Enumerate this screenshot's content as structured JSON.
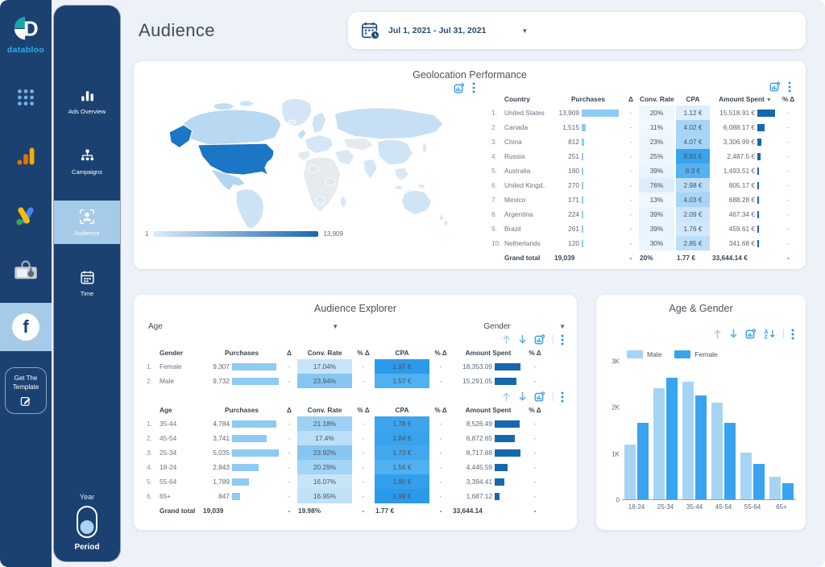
{
  "brand": {
    "name": "databloo"
  },
  "rail": {
    "icons": [
      {
        "name": "apps-grid"
      },
      {
        "name": "google-analytics"
      },
      {
        "name": "google-ads"
      },
      {
        "name": "toolbox"
      },
      {
        "name": "facebook",
        "active": true
      }
    ],
    "template_button": "Get The Template"
  },
  "nav": {
    "items": [
      {
        "label": "Ads Overview",
        "active": false
      },
      {
        "label": "Campaigns",
        "active": false
      },
      {
        "label": "Audience",
        "active": true
      },
      {
        "label": "Time",
        "active": false
      }
    ],
    "toggle": {
      "top_label": "Year",
      "bottom_label": "Period",
      "selected": "Period"
    }
  },
  "header": {
    "title": "Audience",
    "date_range": "Jul 1, 2021 - Jul 31, 2021"
  },
  "geo": {
    "title": "Geolocation Performance",
    "legend_min": "1",
    "legend_max": "13,909",
    "table": {
      "columns": [
        {
          "key": "country",
          "label": "Country"
        },
        {
          "key": "purchases",
          "label": "Purchases"
        },
        {
          "key": "delta",
          "label": "Δ"
        },
        {
          "key": "conv",
          "label": "Conv. Rate"
        },
        {
          "key": "cpa",
          "label": "CPA"
        },
        {
          "key": "spent",
          "label": "Amount Spent",
          "sorted": true
        },
        {
          "key": "pdelta",
          "label": "% Δ"
        }
      ],
      "rows": [
        {
          "n": "1.",
          "country": "United States",
          "purchases": "13,909",
          "delta": "-",
          "conv": "20%",
          "cpa": "1.12 €",
          "spent": "15,518.91 €",
          "pdelta": "-"
        },
        {
          "n": "2.",
          "country": "Canada",
          "purchases": "1,515",
          "delta": "-",
          "conv": "11%",
          "cpa": "4.02 €",
          "spent": "6,088.17 €",
          "pdelta": "-"
        },
        {
          "n": "3.",
          "country": "China",
          "purchases": "812",
          "delta": "-",
          "conv": "23%",
          "cpa": "4.07 €",
          "spent": "3,306.99 €",
          "pdelta": "-"
        },
        {
          "n": "4.",
          "country": "Russia",
          "purchases": "251",
          "delta": "-",
          "conv": "25%",
          "cpa": "9.91 €",
          "spent": "2,487.5 €",
          "pdelta": "-"
        },
        {
          "n": "5.",
          "country": "Australia",
          "purchases": "180",
          "delta": "-",
          "conv": "39%",
          "cpa": "8.3 €",
          "spent": "1,493.51 €",
          "pdelta": "-"
        },
        {
          "n": "6.",
          "country": "United Kingd..",
          "purchases": "270",
          "delta": "-",
          "conv": "76%",
          "cpa": "2.98 €",
          "spent": "805.17 €",
          "pdelta": "-"
        },
        {
          "n": "7.",
          "country": "Mexico",
          "purchases": "171",
          "delta": "-",
          "conv": "13%",
          "cpa": "4.03 €",
          "spent": "688.28 €",
          "pdelta": "-"
        },
        {
          "n": "8.",
          "country": "Argentina",
          "purchases": "224",
          "delta": "-",
          "conv": "39%",
          "cpa": "2.09 €",
          "spent": "467.34 €",
          "pdelta": "-"
        },
        {
          "n": "9.",
          "country": "Brazil",
          "purchases": "261",
          "delta": "-",
          "conv": "39%",
          "cpa": "1.76 €",
          "spent": "459.61 €",
          "pdelta": "-"
        },
        {
          "n": "10.",
          "country": "Netherlands",
          "purchases": "120",
          "delta": "-",
          "conv": "30%",
          "cpa": "2.85 €",
          "spent": "341.68 €",
          "pdelta": "-"
        }
      ],
      "grand_total": {
        "n": "",
        "country": "Grand total",
        "purchases": "19,039",
        "delta": "-",
        "conv": "20%",
        "cpa": "1.77 €",
        "spent": "33,644.14 €",
        "pdelta": "-"
      }
    }
  },
  "explorer": {
    "title": "Audience Explorer",
    "filters": [
      {
        "label": "Age"
      },
      {
        "label": "Gender"
      }
    ],
    "gender_table": {
      "columns": [
        {
          "key": "label",
          "label": "Gender"
        },
        {
          "key": "purchases",
          "label": "Purchases"
        },
        {
          "key": "delta",
          "label": "Δ"
        },
        {
          "key": "conv",
          "label": "Conv. Rate"
        },
        {
          "key": "pd1",
          "label": "% Δ"
        },
        {
          "key": "cpa",
          "label": "CPA"
        },
        {
          "key": "pd2",
          "label": "% Δ"
        },
        {
          "key": "spent",
          "label": "Amount Spent"
        },
        {
          "key": "pd3",
          "label": "% Δ"
        }
      ],
      "rows": [
        {
          "n": "1.",
          "label": "Female",
          "purchases": "9,307",
          "delta": "-",
          "conv": "17.04%",
          "pd1": "-",
          "cpa": "1.97 €",
          "pd2": "-",
          "spent": "18,353.09",
          "pd3": "-"
        },
        {
          "n": "2.",
          "label": "Male",
          "purchases": "9,732",
          "delta": "-",
          "conv": "23.94%",
          "pd1": "-",
          "cpa": "1.57 €",
          "pd2": "-",
          "spent": "15,291.05",
          "pd3": "-"
        }
      ]
    },
    "age_table": {
      "columns": [
        {
          "key": "label",
          "label": "Age"
        },
        {
          "key": "purchases",
          "label": "Purchases"
        },
        {
          "key": "delta",
          "label": "Δ"
        },
        {
          "key": "conv",
          "label": "Conv. Rate"
        },
        {
          "key": "pd1",
          "label": "% Δ"
        },
        {
          "key": "cpa",
          "label": "CPA"
        },
        {
          "key": "pd2",
          "label": "% Δ"
        },
        {
          "key": "spent",
          "label": "Amount Spent"
        },
        {
          "key": "pd3",
          "label": "% Δ"
        }
      ],
      "rows": [
        {
          "n": "1.",
          "label": "35-44",
          "purchases": "4,784",
          "delta": "-",
          "conv": "21.18%",
          "pd1": "-",
          "cpa": "1.78 €",
          "pd2": "-",
          "spent": "8,526.49",
          "pd3": "-"
        },
        {
          "n": "2.",
          "label": "45-54",
          "purchases": "3,741",
          "delta": "-",
          "conv": "17.4%",
          "pd1": "-",
          "cpa": "1.84 €",
          "pd2": "-",
          "spent": "6,872.65",
          "pd3": "-"
        },
        {
          "n": "3.",
          "label": "25-34",
          "purchases": "5,035",
          "delta": "-",
          "conv": "23.92%",
          "pd1": "-",
          "cpa": "1.73 €",
          "pd2": "-",
          "spent": "8,717.88",
          "pd3": "-"
        },
        {
          "n": "4.",
          "label": "18-24",
          "purchases": "2,843",
          "delta": "-",
          "conv": "20.29%",
          "pd1": "-",
          "cpa": "1.56 €",
          "pd2": "-",
          "spent": "4,445.59",
          "pd3": "-"
        },
        {
          "n": "5.",
          "label": "55-64",
          "purchases": "1,789",
          "delta": "-",
          "conv": "16.07%",
          "pd1": "-",
          "cpa": "1.90 €",
          "pd2": "-",
          "spent": "3,394.41",
          "pd3": "-"
        },
        {
          "n": "6.",
          "label": "65+",
          "purchases": "847",
          "delta": "-",
          "conv": "16.95%",
          "pd1": "-",
          "cpa": "1.99 €",
          "pd2": "-",
          "spent": "1,687.12",
          "pd3": "-"
        }
      ],
      "grand_total": {
        "n": "",
        "label": "Grand total",
        "purchases": "19,039",
        "delta": "-",
        "conv": "19.98%",
        "pd1": "-",
        "cpa": "1.77 €",
        "pd2": "-",
        "spent": "33,644.14",
        "pd3": "-"
      }
    }
  },
  "chart_data": {
    "type": "bar",
    "title": "Age & Gender",
    "categories": [
      "18-24",
      "25-34",
      "35-44",
      "45-54",
      "55-64",
      "65+"
    ],
    "series": [
      {
        "name": "Male",
        "values": [
          1190,
          2400,
          2540,
          2090,
          1020,
          490
        ]
      },
      {
        "name": "Female",
        "values": [
          1650,
          2640,
          2250,
          1650,
          770,
          350
        ]
      }
    ],
    "xlabel": "",
    "ylabel": "",
    "ylim": [
      0,
      3000
    ],
    "yticks": [
      {
        "v": 0,
        "label": "0"
      },
      {
        "v": 1000,
        "label": "1K"
      },
      {
        "v": 2000,
        "label": "2K"
      },
      {
        "v": 3000,
        "label": "3K"
      }
    ],
    "legend_position": "top-left",
    "grid": false
  },
  "colors": {
    "sidebar": "#1a4170",
    "selected": "#a5cbe9",
    "accent": "#2f97e6",
    "male": "#a6d4f4",
    "female": "#38a3ee",
    "bar_light": "#8ecbf2",
    "bar_dark": "#1568ae",
    "heat_conv_geo": [
      "#f2f8fd",
      "#dceefb"
    ],
    "heat_cpa_geo": [
      "#ddeefc",
      "#38a3ef"
    ],
    "heat_conv_ae": [
      "#c7e4f9",
      "#86c6f1"
    ],
    "heat_cpa_ae": [
      "#4fb0f2",
      "#2c9aea"
    ],
    "map_legend_min": "#dcebf8",
    "map_legend_max": "#1668b3"
  }
}
